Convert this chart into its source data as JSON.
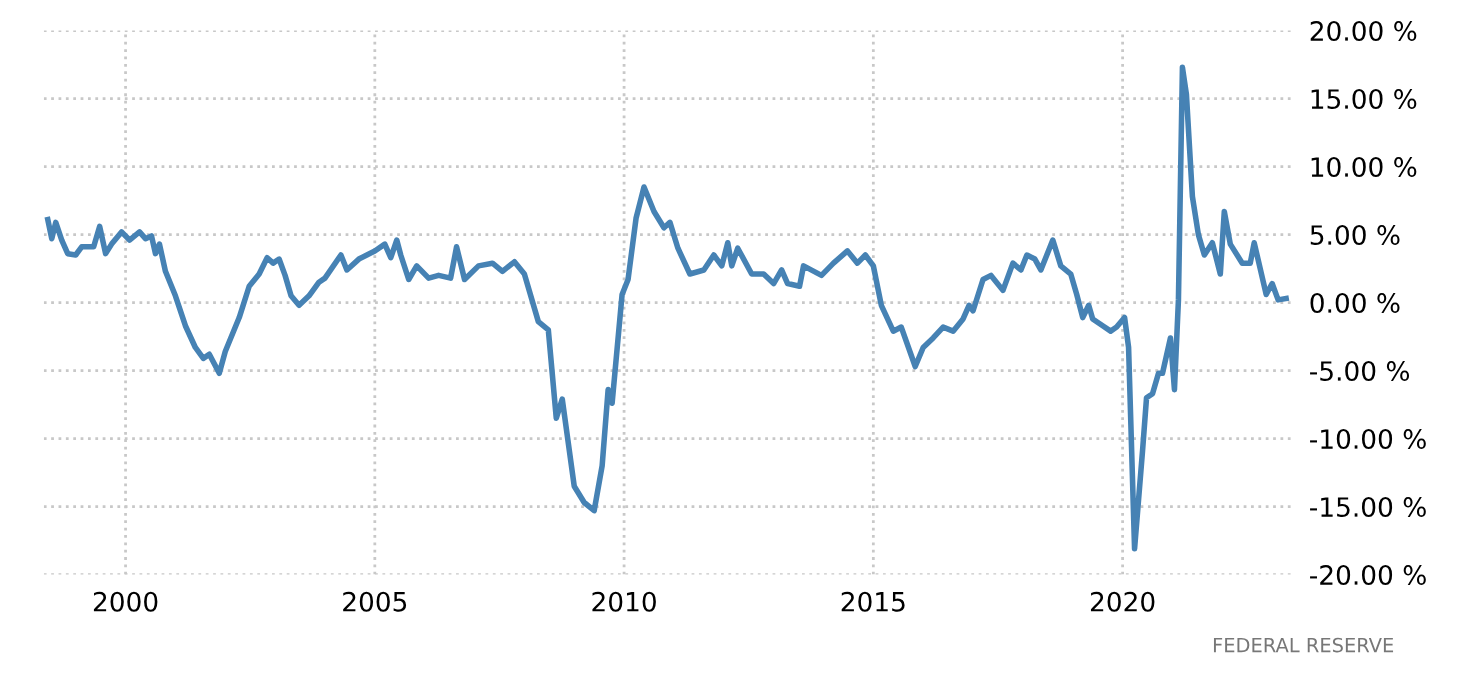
{
  "chart_data": {
    "type": "line",
    "x": [
      1998.44,
      1998.52,
      1998.6,
      1998.72,
      1998.84,
      1999.0,
      1999.12,
      1999.36,
      1999.48,
      1999.6,
      1999.72,
      1999.92,
      2000.08,
      2000.28,
      2000.4,
      2000.52,
      2000.6,
      2000.68,
      2000.8,
      2001.0,
      2001.2,
      2001.4,
      2001.56,
      2001.68,
      2001.88,
      2002.0,
      2002.28,
      2002.48,
      2002.68,
      2002.84,
      2002.96,
      2003.08,
      2003.2,
      2003.32,
      2003.48,
      2003.68,
      2003.88,
      2004.0,
      2004.32,
      2004.44,
      2004.68,
      2004.84,
      2005.0,
      2005.2,
      2005.32,
      2005.44,
      2005.52,
      2005.68,
      2005.84,
      2006.08,
      2006.28,
      2006.52,
      2006.64,
      2006.8,
      2007.08,
      2007.36,
      2007.56,
      2007.8,
      2008.0,
      2008.28,
      2008.48,
      2008.64,
      2008.76,
      2009.0,
      2009.2,
      2009.4,
      2009.56,
      2009.68,
      2009.76,
      2009.96,
      2010.08,
      2010.24,
      2010.4,
      2010.6,
      2010.8,
      2010.92,
      2011.08,
      2011.32,
      2011.6,
      2011.8,
      2011.96,
      2012.08,
      2012.16,
      2012.28,
      2012.56,
      2012.8,
      2013.0,
      2013.16,
      2013.28,
      2013.52,
      2013.6,
      2013.96,
      2014.2,
      2014.48,
      2014.68,
      2014.84,
      2015.0,
      2015.16,
      2015.4,
      2015.56,
      2015.84,
      2016.0,
      2016.2,
      2016.4,
      2016.6,
      2016.8,
      2016.92,
      2017.0,
      2017.2,
      2017.36,
      2017.6,
      2017.8,
      2017.96,
      2018.08,
      2018.24,
      2018.36,
      2018.6,
      2018.76,
      2018.96,
      2019.08,
      2019.2,
      2019.32,
      2019.4,
      2019.6,
      2019.76,
      2019.88,
      2020.04,
      2020.12,
      2020.24,
      2020.4,
      2020.48,
      2020.6,
      2020.72,
      2020.8,
      2020.96,
      2021.04,
      2021.12,
      2021.2,
      2021.28,
      2021.4,
      2021.52,
      2021.64,
      2021.8,
      2021.96,
      2022.04,
      2022.16,
      2022.4,
      2022.56,
      2022.64,
      2022.88,
      2023.0,
      2023.12,
      2023.28
    ],
    "series": [
      {
        "color": "#4682b4",
        "values": [
          6.1,
          4.7,
          5.9,
          4.6,
          3.6,
          3.5,
          4.1,
          4.1,
          5.6,
          3.6,
          4.3,
          5.2,
          4.6,
          5.2,
          4.7,
          4.9,
          3.6,
          4.3,
          2.3,
          0.5,
          -1.7,
          -3.3,
          -4.1,
          -3.8,
          -5.2,
          -3.6,
          -1.1,
          1.2,
          2.1,
          3.3,
          2.9,
          3.2,
          2.0,
          0.5,
          -0.2,
          0.5,
          1.5,
          1.8,
          3.5,
          2.4,
          3.2,
          3.5,
          3.8,
          4.3,
          3.3,
          4.6,
          3.5,
          1.7,
          2.7,
          1.8,
          2.0,
          1.8,
          4.1,
          1.7,
          2.7,
          2.9,
          2.3,
          3.0,
          2.1,
          -1.4,
          -2.0,
          -8.5,
          -7.1,
          -13.5,
          -14.7,
          -15.3,
          -12.0,
          -6.4,
          -7.4,
          0.6,
          1.7,
          6.2,
          8.5,
          6.7,
          5.5,
          5.9,
          4.0,
          2.1,
          2.4,
          3.5,
          2.7,
          4.4,
          2.7,
          4.0,
          2.1,
          2.1,
          1.4,
          2.4,
          1.4,
          1.2,
          2.7,
          2.0,
          2.9,
          3.8,
          2.9,
          3.5,
          2.7,
          -0.2,
          -2.1,
          -1.8,
          -4.7,
          -3.3,
          -2.6,
          -1.8,
          -2.1,
          -1.2,
          -0.2,
          -0.6,
          1.7,
          2.0,
          0.9,
          2.9,
          2.4,
          3.5,
          3.2,
          2.4,
          4.6,
          2.7,
          2.1,
          0.6,
          -1.1,
          -0.2,
          -1.2,
          -1.7,
          -2.1,
          -1.8,
          -1.1,
          -3.3,
          -18.1,
          -10.9,
          -7.0,
          -6.7,
          -5.2,
          -5.2,
          -2.6,
          -6.4,
          0.2,
          17.3,
          15.3,
          7.8,
          5.0,
          3.5,
          4.4,
          2.1,
          6.7,
          4.3,
          2.9,
          2.9,
          4.4,
          0.6,
          1.4,
          0.2,
          0.3
        ]
      }
    ],
    "xlim": [
      1998.36,
      2023.4
    ],
    "ylim": [
      -20,
      20
    ],
    "xticks": [
      2000,
      2005,
      2010,
      2015,
      2020
    ],
    "yticks": [
      {
        "value": 20,
        "label": "20.00 %"
      },
      {
        "value": 15,
        "label": "15.00 %"
      },
      {
        "value": 10,
        "label": "10.00 %"
      },
      {
        "value": 5,
        "label": "5.00 %"
      },
      {
        "value": 0,
        "label": "0.00 %"
      },
      {
        "value": -5,
        "label": "-5.00 %"
      },
      {
        "value": -10,
        "label": "-10.00 %"
      },
      {
        "value": -15,
        "label": "-15.00 %"
      },
      {
        "value": -20,
        "label": "-20.00 %"
      }
    ],
    "grid": true,
    "line_style": "solid",
    "annotations": [
      "FEDERAL RESERVE"
    ]
  }
}
